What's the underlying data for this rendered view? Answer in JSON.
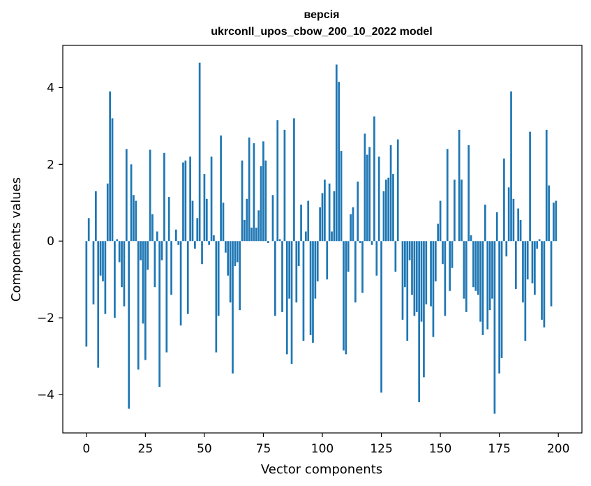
{
  "chart_data": {
    "type": "bar",
    "title": "версія",
    "subtitle": "ukrconll_upos_cbow_200_10_2022 model",
    "xlabel": "Vector components",
    "ylabel": "Components values",
    "xlim": [
      -10,
      210
    ],
    "ylim": [
      -5,
      5.1
    ],
    "xticks": [
      0,
      25,
      50,
      75,
      100,
      125,
      150,
      175,
      200
    ],
    "yticks": [
      -4,
      -2,
      0,
      2,
      4
    ],
    "ytick_labels": [
      "−4",
      "−2",
      "0",
      "2",
      "4"
    ],
    "bar_color": "#1f77b4",
    "x": [
      0,
      1,
      2,
      3,
      4,
      5,
      6,
      7,
      8,
      9,
      10,
      11,
      12,
      13,
      14,
      15,
      16,
      17,
      18,
      19,
      20,
      21,
      22,
      23,
      24,
      25,
      26,
      27,
      28,
      29,
      30,
      31,
      32,
      33,
      34,
      35,
      36,
      37,
      38,
      39,
      40,
      41,
      42,
      43,
      44,
      45,
      46,
      47,
      48,
      49,
      50,
      51,
      52,
      53,
      54,
      55,
      56,
      57,
      58,
      59,
      60,
      61,
      62,
      63,
      64,
      65,
      66,
      67,
      68,
      69,
      70,
      71,
      72,
      73,
      74,
      75,
      76,
      77,
      78,
      79,
      80,
      81,
      82,
      83,
      84,
      85,
      86,
      87,
      88,
      89,
      90,
      91,
      92,
      93,
      94,
      95,
      96,
      97,
      98,
      99,
      100,
      101,
      102,
      103,
      104,
      105,
      106,
      107,
      108,
      109,
      110,
      111,
      112,
      113,
      114,
      115,
      116,
      117,
      118,
      119,
      120,
      121,
      122,
      123,
      124,
      125,
      126,
      127,
      128,
      129,
      130,
      131,
      132,
      133,
      134,
      135,
      136,
      137,
      138,
      139,
      140,
      141,
      142,
      143,
      144,
      145,
      146,
      147,
      148,
      149,
      150,
      151,
      152,
      153,
      154,
      155,
      156,
      157,
      158,
      159,
      160,
      161,
      162,
      163,
      164,
      165,
      166,
      167,
      168,
      169,
      170,
      171,
      172,
      173,
      174,
      175,
      176,
      177,
      178,
      179,
      180,
      181,
      182,
      183,
      184,
      185,
      186,
      187,
      188,
      189,
      190,
      191,
      192,
      193,
      194,
      195,
      196,
      197,
      198,
      199
    ],
    "values": [
      -2.75,
      0.6,
      0,
      -1.65,
      1.3,
      -3.3,
      -0.9,
      -1.05,
      -1.9,
      1.5,
      3.9,
      3.2,
      -2,
      0.05,
      -0.55,
      -1.2,
      -1.7,
      2.4,
      -4.37,
      2,
      1.2,
      1.05,
      -3.35,
      -0.5,
      -2.15,
      -3.1,
      -0.75,
      2.38,
      0.7,
      -1.2,
      0.25,
      -3.8,
      -0.5,
      2.3,
      -2.9,
      1.15,
      -1.4,
      0,
      0.3,
      -0.1,
      -2.2,
      2.05,
      2.1,
      -1.9,
      2.2,
      1.05,
      -0.2,
      0.6,
      4.65,
      -0.6,
      1.75,
      1.1,
      -0.1,
      2.2,
      0.15,
      -2.9,
      -1.95,
      2.75,
      1,
      -0.3,
      -0.9,
      -1.6,
      -3.45,
      -0.65,
      -0.55,
      -1.8,
      2.1,
      0.55,
      1.1,
      2.7,
      0.35,
      2.55,
      0.35,
      0.8,
      1.95,
      2.6,
      2.1,
      -0.05,
      0,
      1.2,
      -1.95,
      3.15,
      0.05,
      -1.85,
      2.9,
      -2.95,
      -1.5,
      -3.2,
      3.2,
      -1.6,
      -0.65,
      0.95,
      -2.6,
      0.25,
      1.05,
      -2.45,
      -2.65,
      -1.5,
      -1.05,
      0.88,
      1.25,
      1.6,
      -1,
      1.5,
      0.25,
      1.3,
      4.6,
      4.15,
      2.35,
      -2.85,
      -2.95,
      -0.8,
      0.7,
      0.88,
      -1.6,
      1.55,
      -0.05,
      -1.35,
      2.8,
      2.25,
      2.45,
      -0.1,
      3.25,
      -0.9,
      2.2,
      -3.95,
      1.3,
      1.6,
      1.65,
      2.5,
      1.75,
      -0.8,
      2.65,
      0,
      -2.05,
      -1.2,
      -2.6,
      -0.5,
      -1.4,
      -1.95,
      -1.85,
      -4.2,
      -2.1,
      -3.55,
      -1.65,
      0,
      -1.7,
      -2.5,
      -1.05,
      0.45,
      1.05,
      -0.6,
      -1.95,
      2.4,
      -1.3,
      -0.7,
      1.6,
      0,
      2.9,
      1.6,
      -1.5,
      -1.85,
      2.5,
      0.15,
      -1.2,
      -1.3,
      -1.4,
      -2.1,
      -2.45,
      0.95,
      -2.3,
      -1.8,
      -1.5,
      -4.5,
      0.75,
      -3.45,
      -3.05,
      2.15,
      -0.4,
      1.4,
      3.9,
      1.1,
      -1.25,
      0.85,
      0.55,
      -1.6,
      -2.6,
      -1,
      2.85,
      -1.1,
      -1.4,
      -0.2,
      0.05,
      -2.05,
      -2.25,
      2.9,
      1.45,
      -1.7,
      1,
      1.05
    ]
  }
}
